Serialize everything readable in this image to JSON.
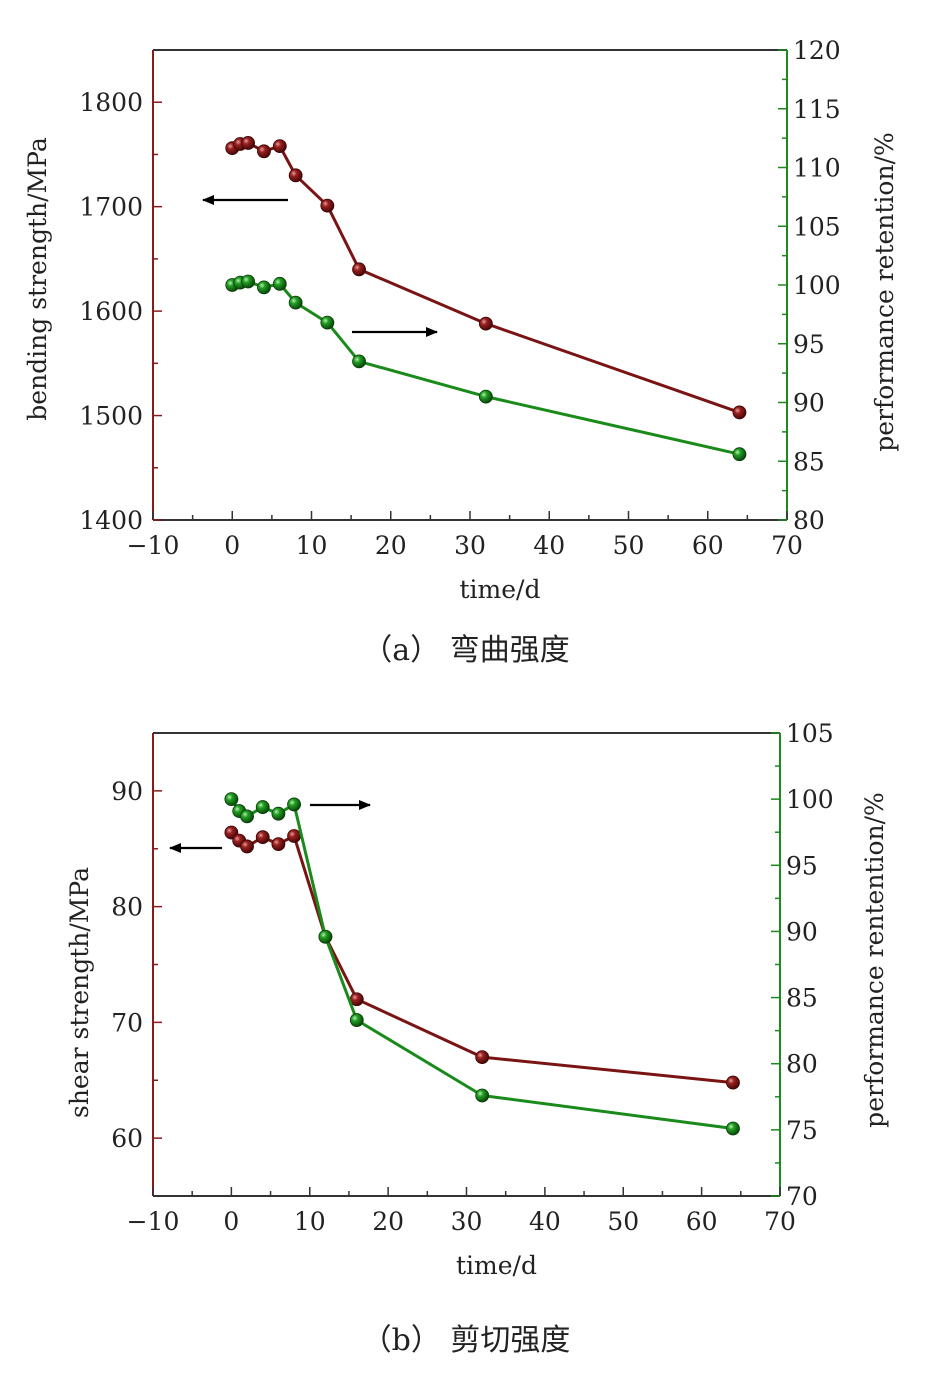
{
  "chart_data": [
    {
      "type": "line",
      "caption": "（a） 弯曲强度",
      "xlabel": "time/d",
      "ylabel": "bending strength/MPa",
      "y2label": "performance retention/%",
      "xlim": [
        -10,
        70
      ],
      "ylim": [
        1400,
        1850
      ],
      "y2lim": [
        80,
        120
      ],
      "xticks": [
        -10,
        0,
        10,
        20,
        30,
        40,
        50,
        60,
        70
      ],
      "yticks": [
        1400,
        1500,
        1600,
        1700,
        1800
      ],
      "y2ticks": [
        80,
        85,
        90,
        95,
        100,
        105,
        110,
        115,
        120
      ],
      "left_axis_color": "#8b1a1a",
      "right_axis_color": "#1e8a1e",
      "grid": false,
      "series": [
        {
          "axis": "left",
          "color": "#7a1414",
          "x": [
            0,
            1,
            2,
            4,
            6,
            8,
            12,
            16,
            32,
            64
          ],
          "values": [
            1756,
            1760,
            1761,
            1753,
            1758,
            1730,
            1701,
            1640,
            1588,
            1503
          ]
        },
        {
          "axis": "right",
          "color": "#1a8a1a",
          "x": [
            0,
            1,
            2,
            4,
            6,
            8,
            12,
            16,
            32,
            64
          ],
          "values": [
            100,
            100.2,
            100.3,
            99.8,
            100.1,
            98.5,
            96.8,
            93.5,
            90.5,
            85.6
          ]
        }
      ],
      "annotations": [
        {
          "type": "arrow",
          "direction": "left",
          "meaning": "left axis"
        },
        {
          "type": "arrow",
          "direction": "right",
          "meaning": "right axis"
        }
      ]
    },
    {
      "type": "line",
      "caption": "（b） 剪切强度",
      "xlabel": "time/d",
      "ylabel": "shear strength/MPa",
      "y2label": "performance rentention/%",
      "xlim": [
        -10,
        70
      ],
      "ylim": [
        55,
        95
      ],
      "y2lim": [
        70,
        105
      ],
      "xticks": [
        -10,
        0,
        10,
        20,
        30,
        40,
        50,
        60,
        70
      ],
      "yticks": [
        60,
        70,
        80,
        90
      ],
      "y2ticks": [
        70,
        75,
        80,
        85,
        90,
        95,
        100,
        105
      ],
      "left_axis_color": "#8b1a1a",
      "right_axis_color": "#1e8a1e",
      "grid": false,
      "series": [
        {
          "axis": "left",
          "color": "#7a1414",
          "x": [
            0,
            1,
            2,
            4,
            6,
            8,
            12,
            16,
            32,
            64
          ],
          "values": [
            86.4,
            85.7,
            85.2,
            86.0,
            85.4,
            86.1,
            77.4,
            72.0,
            67.0,
            64.8
          ]
        },
        {
          "axis": "right",
          "color": "#1a8a1a",
          "x": [
            0,
            1,
            2,
            4,
            6,
            8,
            12,
            16,
            32,
            64
          ],
          "values": [
            100,
            99.1,
            98.7,
            99.4,
            98.9,
            99.6,
            89.6,
            83.3,
            77.6,
            75.1
          ]
        }
      ],
      "annotations": [
        {
          "type": "arrow",
          "direction": "left",
          "meaning": "left axis"
        },
        {
          "type": "arrow",
          "direction": "right",
          "meaning": "right axis"
        }
      ]
    }
  ]
}
